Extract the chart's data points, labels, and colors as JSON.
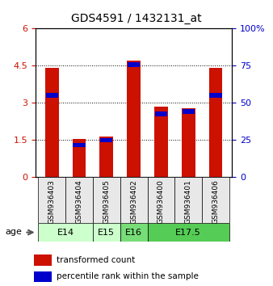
{
  "title": "GDS4591 / 1432131_at",
  "samples": [
    "GSM936403",
    "GSM936404",
    "GSM936405",
    "GSM936402",
    "GSM936400",
    "GSM936401",
    "GSM936406"
  ],
  "red_values": [
    4.4,
    1.55,
    1.65,
    4.7,
    2.85,
    2.8,
    4.4
  ],
  "blue_values": [
    3.3,
    1.3,
    1.5,
    4.55,
    2.55,
    2.65,
    3.3
  ],
  "blue_pct": [
    55,
    22,
    25,
    76,
    43,
    44,
    55
  ],
  "ylim_left": [
    0,
    6
  ],
  "ylim_right": [
    0,
    100
  ],
  "yticks_left": [
    0,
    1.5,
    3,
    4.5,
    6
  ],
  "yticks_right": [
    0,
    25,
    50,
    75,
    100
  ],
  "ytick_labels_left": [
    "0",
    "1.5",
    "3",
    "4.5",
    "6"
  ],
  "ytick_labels_right": [
    "0",
    "25",
    "50",
    "75",
    "100%"
  ],
  "groups": [
    {
      "label": "E14",
      "samples": [
        "GSM936403",
        "GSM936404"
      ],
      "color": "#ccffcc"
    },
    {
      "label": "E15",
      "samples": [
        "GSM936405"
      ],
      "color": "#ccffcc"
    },
    {
      "label": "E16",
      "samples": [
        "GSM936402"
      ],
      "color": "#99ff99"
    },
    {
      "label": "E17.5",
      "samples": [
        "GSM936400",
        "GSM936401",
        "GSM936406"
      ],
      "color": "#66ee66"
    }
  ],
  "bar_width": 0.5,
  "red_color": "#cc1100",
  "blue_color": "#0000cc",
  "grid_color": "black",
  "bg_color": "#e8e8e8",
  "legend_red": "transformed count",
  "legend_blue": "percentile rank within the sample",
  "age_label": "age",
  "left_tick_color": "#cc1100",
  "right_tick_color": "#0000cc"
}
